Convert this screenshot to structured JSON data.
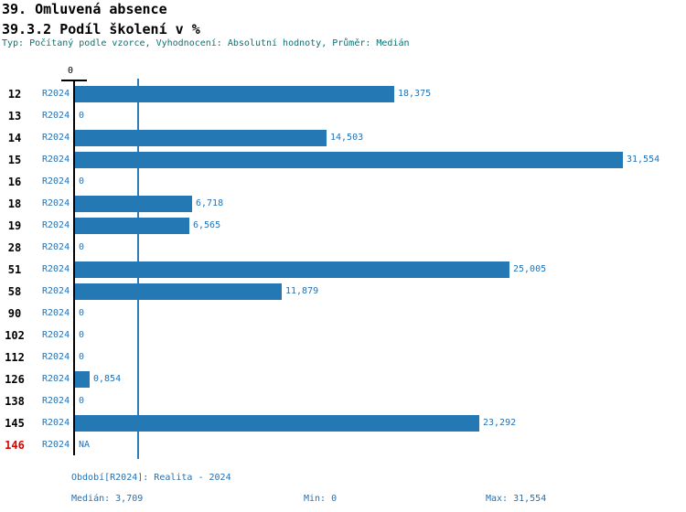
{
  "header": {
    "title": "39. Omluvená absence",
    "subtitle": "39.3.2 Podíl školení v %",
    "meta": "Typ: Počítaný podle vzorce, Vyhodnocení: Absolutní hodnoty, Průměr: Medián"
  },
  "chart_data": {
    "type": "bar",
    "orientation": "horizontal",
    "title": "39.3.2 Podíl školení v %",
    "xlabel": "",
    "ylabel": "",
    "xlim": [
      0,
      31.554
    ],
    "axis_zero_label": "0",
    "median_value": 3.709,
    "period_label": "R2024",
    "rows": [
      {
        "id": "12",
        "period": "R2024",
        "value": 18.375,
        "label": "18,375",
        "id_color": "black"
      },
      {
        "id": "13",
        "period": "R2024",
        "value": 0,
        "label": "0",
        "id_color": "black"
      },
      {
        "id": "14",
        "period": "R2024",
        "value": 14.503,
        "label": "14,503",
        "id_color": "black"
      },
      {
        "id": "15",
        "period": "R2024",
        "value": 31.554,
        "label": "31,554",
        "id_color": "black"
      },
      {
        "id": "16",
        "period": "R2024",
        "value": 0,
        "label": "0",
        "id_color": "black"
      },
      {
        "id": "18",
        "period": "R2024",
        "value": 6.718,
        "label": "6,718",
        "id_color": "black"
      },
      {
        "id": "19",
        "period": "R2024",
        "value": 6.565,
        "label": "6,565",
        "id_color": "black"
      },
      {
        "id": "28",
        "period": "R2024",
        "value": 0,
        "label": "0",
        "id_color": "black"
      },
      {
        "id": "51",
        "period": "R2024",
        "value": 25.005,
        "label": "25,005",
        "id_color": "black"
      },
      {
        "id": "58",
        "period": "R2024",
        "value": 11.879,
        "label": "11,879",
        "id_color": "black"
      },
      {
        "id": "90",
        "period": "R2024",
        "value": 0,
        "label": "0",
        "id_color": "black"
      },
      {
        "id": "102",
        "period": "R2024",
        "value": 0,
        "label": "0",
        "id_color": "black"
      },
      {
        "id": "112",
        "period": "R2024",
        "value": 0,
        "label": "0",
        "id_color": "black"
      },
      {
        "id": "126",
        "period": "R2024",
        "value": 0.854,
        "label": "0,854",
        "id_color": "black"
      },
      {
        "id": "138",
        "period": "R2024",
        "value": 0,
        "label": "0",
        "id_color": "black"
      },
      {
        "id": "145",
        "period": "R2024",
        "value": 23.292,
        "label": "23,292",
        "id_color": "black"
      },
      {
        "id": "146",
        "period": "R2024",
        "value": null,
        "label": "NA",
        "id_color": "red"
      }
    ],
    "legend": [],
    "grid": false
  },
  "footer": {
    "period": "Období[R2024]: Realita - 2024",
    "median": "Medián: 3,709",
    "min": "Min: 0",
    "max": "Max: 31,554"
  },
  "colors": {
    "bar": "#2478b4",
    "median_line": "#2e7cb8",
    "label_blue": "#2272b5",
    "meta_teal": "#067575",
    "id_red": "#dd0000",
    "axis_black": "#000000",
    "background": "#ffffff"
  }
}
